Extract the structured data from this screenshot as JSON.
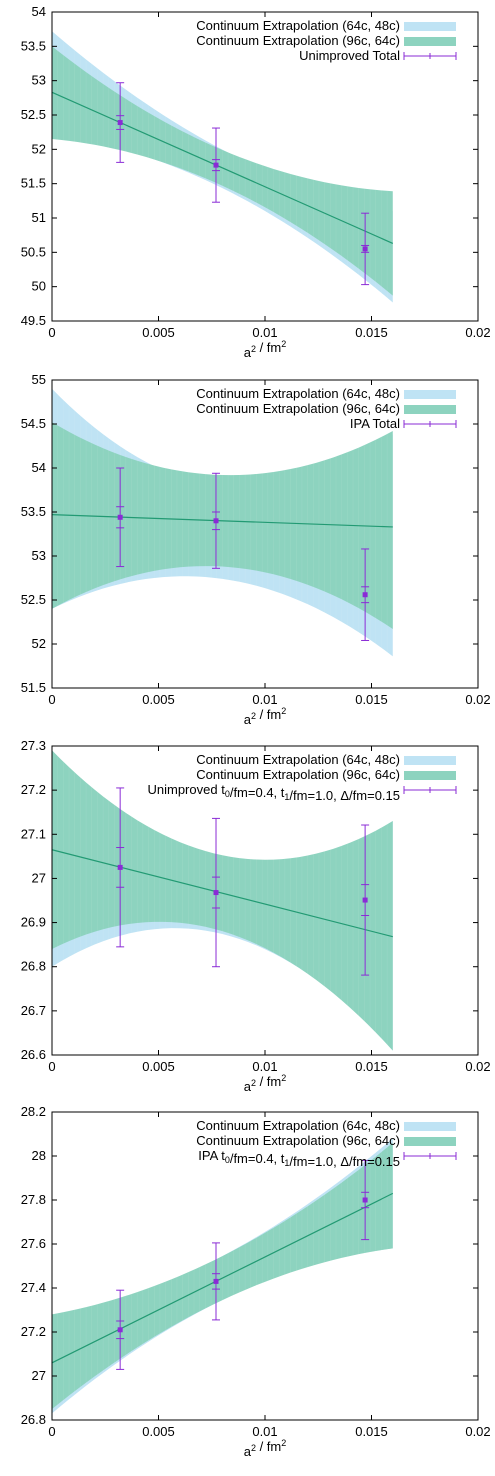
{
  "colors": {
    "band1": "#bfe3f4",
    "band2": "#8dd3bf",
    "fit_line": "#229a73",
    "points": "#8a2bd6",
    "axis": "#000000"
  },
  "chart_data": [
    {
      "type": "line",
      "xlabel": "a^2 / fm^2",
      "xlim": [
        0,
        0.02
      ],
      "xticks": [
        "0",
        "0.005",
        "0.01",
        "0.015",
        "0.02"
      ],
      "ylim": [
        49.5,
        54
      ],
      "yticks": [
        "49.5",
        "50",
        "50.5",
        "51",
        "51.5",
        "52",
        "52.5",
        "53",
        "53.5",
        "54"
      ],
      "legend_position": "top-right",
      "series": [
        {
          "name": "Continuum Extrapolation (64c, 48c)",
          "kind": "band",
          "x": [
            0,
            0.016
          ],
          "center": [
            52.98,
            50.45
          ],
          "lower": [
            52.22,
            49.77
          ],
          "upper": [
            53.72,
            51.1
          ],
          "mid_halfwidth": 0.28
        },
        {
          "name": "Continuum Extrapolation (96c, 64c)",
          "kind": "band",
          "x": [
            0,
            0.016
          ],
          "center": [
            52.83,
            50.63
          ],
          "lower": [
            52.15,
            49.87
          ],
          "upper": [
            53.5,
            51.39
          ],
          "mid_halfwidth": 0.26
        },
        {
          "name": "Unimproved Total",
          "kind": "errorbars",
          "x": [
            0.0032,
            0.0077,
            0.0147
          ],
          "y": [
            52.39,
            51.77,
            50.55
          ],
          "stat_err": [
            0.1,
            0.08,
            0.05
          ],
          "tot_err": [
            0.58,
            0.54,
            0.52
          ]
        }
      ]
    },
    {
      "type": "line",
      "xlabel": "a^2 / fm^2",
      "xlim": [
        0,
        0.02
      ],
      "xticks": [
        "0",
        "0.005",
        "0.01",
        "0.015",
        "0.02"
      ],
      "ylim": [
        51.5,
        55
      ],
      "yticks": [
        "51.5",
        "52",
        "52.5",
        "53",
        "53.5",
        "54",
        "54.5",
        "55"
      ],
      "legend_position": "top-right",
      "series": [
        {
          "name": "Continuum Extrapolation (64c, 48c)",
          "kind": "band",
          "x": [
            0,
            0.016
          ],
          "center": [
            53.4,
            53.12
          ],
          "lower": [
            52.4,
            51.86
          ],
          "upper": [
            54.9,
            54.38
          ],
          "mid_halfwidth": 0.52
        },
        {
          "name": "Continuum Extrapolation (96c, 64c)",
          "kind": "band",
          "x": [
            0,
            0.016
          ],
          "center": [
            53.47,
            53.33
          ],
          "lower": [
            52.4,
            52.17
          ],
          "upper": [
            54.52,
            54.42
          ],
          "mid_halfwidth": 0.52
        },
        {
          "name": "IPA Total",
          "kind": "errorbars",
          "x": [
            0.0032,
            0.0077,
            0.0147
          ],
          "y": [
            53.44,
            53.4,
            52.56
          ],
          "stat_err": [
            0.12,
            0.1,
            0.09
          ],
          "tot_err": [
            0.56,
            0.54,
            0.52
          ]
        }
      ]
    },
    {
      "type": "line",
      "xlabel": "a^2 / fm^2",
      "xlim": [
        0,
        0.02
      ],
      "xticks": [
        "0",
        "0.005",
        "0.01",
        "0.015",
        "0.02"
      ],
      "ylim": [
        26.6,
        27.3
      ],
      "yticks": [
        "26.6",
        "26.7",
        "26.8",
        "26.9",
        "27",
        "27.1",
        "27.2",
        "27.3"
      ],
      "legend_position": "top-right",
      "series": [
        {
          "name": "Continuum Extrapolation (64c, 48c)",
          "kind": "band",
          "x": [
            0,
            0.016
          ],
          "center": [
            27.05,
            26.87
          ],
          "lower": [
            26.8,
            26.61
          ],
          "upper": [
            27.29,
            27.13
          ],
          "mid_halfwidth": 0.086
        },
        {
          "name": "Continuum Extrapolation (96c, 64c)",
          "kind": "band",
          "x": [
            0,
            0.016
          ],
          "center": [
            27.065,
            26.868
          ],
          "lower": [
            26.84,
            26.61
          ],
          "upper": [
            27.29,
            27.13
          ],
          "mid_halfwidth": 0.086
        },
        {
          "name": "Unimproved t0/fm=0.4, t1/fm=1.0, Δ/fm=0.15",
          "kind": "errorbars",
          "x": [
            0.0032,
            0.0077,
            0.0147
          ],
          "y": [
            27.025,
            26.968,
            26.951
          ],
          "stat_err": [
            0.045,
            0.035,
            0.035
          ],
          "tot_err": [
            0.18,
            0.168,
            0.17
          ]
        }
      ]
    },
    {
      "type": "line",
      "xlabel": "a^2 / fm^2",
      "xlim": [
        0,
        0.02
      ],
      "xticks": [
        "0",
        "0.005",
        "0.01",
        "0.015",
        "0.02"
      ],
      "ylim": [
        26.8,
        28.2
      ],
      "yticks": [
        "26.8",
        "27",
        "27.2",
        "27.4",
        "27.6",
        "27.8",
        "28",
        "28.2"
      ],
      "legend_position": "top-right",
      "series": [
        {
          "name": "Continuum Extrapolation (64c, 48c)",
          "kind": "band",
          "x": [
            0,
            0.016
          ],
          "center": [
            27.05,
            27.84
          ],
          "lower": [
            26.83,
            27.58
          ],
          "upper": [
            27.26,
            28.08
          ],
          "mid_halfwidth": 0.1
        },
        {
          "name": "Continuum Extrapolation (96c, 64c)",
          "kind": "band",
          "x": [
            0,
            0.016
          ],
          "center": [
            27.06,
            27.83
          ],
          "lower": [
            26.85,
            27.58
          ],
          "upper": [
            27.28,
            28.06
          ],
          "mid_halfwidth": 0.1
        },
        {
          "name": "IPA t0/fm=0.4, t1/fm=1.0, Δ/fm=0.15",
          "kind": "errorbars",
          "x": [
            0.0032,
            0.0077,
            0.0147
          ],
          "y": [
            27.21,
            27.43,
            27.8
          ],
          "stat_err": [
            0.04,
            0.035,
            0.035
          ],
          "tot_err": [
            0.18,
            0.175,
            0.18
          ]
        }
      ]
    }
  ]
}
